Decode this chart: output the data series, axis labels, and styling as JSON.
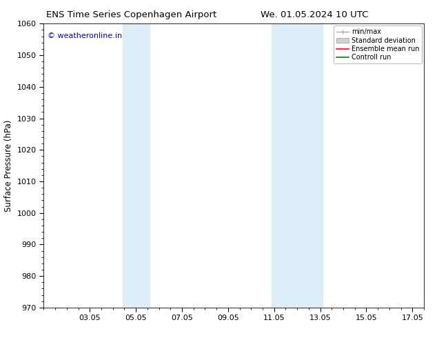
{
  "title_left": "ENS Time Series Copenhagen Airport",
  "title_right": "We. 01.05.2024 10 UTC",
  "ylabel": "Surface Pressure (hPa)",
  "ylim": [
    970,
    1060
  ],
  "yticks": [
    970,
    980,
    990,
    1000,
    1010,
    1020,
    1030,
    1040,
    1050,
    1060
  ],
  "xlim": [
    1.0,
    17.5
  ],
  "xtick_labels": [
    "03.05",
    "05.05",
    "07.05",
    "09.05",
    "11.05",
    "13.05",
    "15.05",
    "17.05"
  ],
  "xtick_positions": [
    3,
    5,
    7,
    9,
    11,
    13,
    15,
    17
  ],
  "shaded_bands": [
    {
      "x_start": 4.42,
      "x_end": 5.58,
      "color": "#ddeef8"
    },
    {
      "x_start": 10.9,
      "x_end": 13.1,
      "color": "#ddeef8"
    }
  ],
  "watermark_text": "© weatheronline.in",
  "watermark_color": "#0000cc",
  "watermark_fontsize": 8,
  "legend_labels": [
    "min/max",
    "Standard deviation",
    "Ensemble mean run",
    "Controll run"
  ],
  "legend_colors_line": [
    "#aaaaaa",
    "#cccccc",
    "#ff0000",
    "#008000"
  ],
  "background_color": "#ffffff",
  "plot_bg_color": "#ffffff",
  "font_color": "#000000",
  "title_fontsize": 9.5,
  "ylabel_fontsize": 8.5,
  "tick_labelsize": 8,
  "legend_fontsize": 7
}
